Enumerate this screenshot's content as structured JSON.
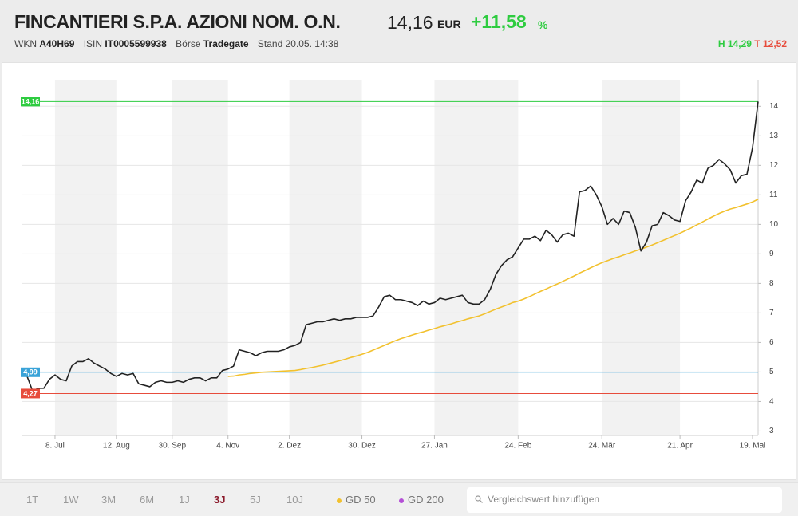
{
  "header": {
    "title": "FINCANTIERI S.P.A. AZIONI NOM. O.N.",
    "price": "14,16",
    "currency": "EUR",
    "change": "+11,58",
    "change_unit": "%",
    "meta": [
      {
        "label": "WKN",
        "value": "A40H69"
      },
      {
        "label": "ISIN",
        "value": "IT0005599938"
      },
      {
        "label": "Börse",
        "value": "Tradegate"
      }
    ],
    "stand": "Stand 20.05. 14:38",
    "high_label": "H",
    "high": "14,29",
    "low_label": "T",
    "low": "12,52"
  },
  "toolbar": {
    "ranges": [
      "1T",
      "1W",
      "3M",
      "6M",
      "1J",
      "3J",
      "5J",
      "10J"
    ],
    "active_range": 5,
    "extra_indicator": {
      "name": "GD 200",
      "color": "#b44fd6"
    },
    "search_placeholder": "Vergleichswert hinzufügen"
  },
  "chart_data": {
    "type": "line",
    "x": [
      0,
      1,
      2,
      3,
      4,
      5,
      6,
      7,
      8,
      9,
      10,
      11,
      12,
      13,
      14,
      15,
      16,
      17,
      18,
      19,
      20,
      21,
      22,
      23,
      24,
      25,
      26,
      27,
      28,
      29,
      30,
      31,
      32,
      33,
      34,
      35,
      36,
      37,
      38,
      39,
      40,
      41,
      42,
      43,
      44,
      45,
      46,
      47,
      48,
      49,
      50,
      51,
      52,
      53,
      54,
      55,
      56,
      57,
      58,
      59,
      60,
      61,
      62,
      63,
      64,
      65,
      66,
      67,
      68,
      69,
      70,
      71,
      72,
      73,
      74,
      75,
      76,
      77,
      78,
      79,
      80,
      81,
      82,
      83,
      84,
      85,
      86,
      87,
      88,
      89,
      90,
      91,
      92,
      93,
      94,
      95,
      96,
      97,
      98,
      99,
      100,
      101,
      102,
      103,
      104,
      105,
      106,
      107,
      108,
      109,
      110,
      111,
      112,
      113,
      114,
      115,
      116,
      117,
      118,
      119,
      120,
      121,
      122,
      123,
      124,
      125,
      126,
      127,
      128,
      129,
      130,
      131,
      132
    ],
    "series": [
      {
        "color": "#222222",
        "values": [
          4.99,
          4.85,
          4.35,
          4.45,
          4.45,
          4.75,
          4.9,
          4.75,
          4.7,
          5.2,
          5.35,
          5.35,
          5.45,
          5.3,
          5.2,
          5.1,
          4.95,
          4.85,
          4.95,
          4.9,
          4.95,
          4.6,
          4.55,
          4.5,
          4.65,
          4.7,
          4.65,
          4.65,
          4.7,
          4.65,
          4.75,
          4.8,
          4.8,
          4.7,
          4.8,
          4.8,
          5.05,
          5.1,
          5.2,
          5.75,
          5.7,
          5.65,
          5.55,
          5.65,
          5.7,
          5.7,
          5.7,
          5.75,
          5.85,
          5.9,
          6.0,
          6.6,
          6.65,
          6.7,
          6.7,
          6.75,
          6.8,
          6.75,
          6.8,
          6.8,
          6.85,
          6.85,
          6.85,
          6.9,
          7.2,
          7.55,
          7.6,
          7.45,
          7.45,
          7.4,
          7.35,
          7.25,
          7.4,
          7.3,
          7.35,
          7.5,
          7.45,
          7.5,
          7.55,
          7.6,
          7.35,
          7.3,
          7.3,
          7.45,
          7.8,
          8.3,
          8.6,
          8.8,
          8.9,
          9.2,
          9.5,
          9.5,
          9.6,
          9.45,
          9.8,
          9.65,
          9.4,
          9.65,
          9.7,
          9.6,
          11.1,
          11.15,
          11.3,
          11.0,
          10.6,
          10.0,
          10.2,
          10.0,
          10.45,
          10.4,
          9.9,
          9.1,
          9.4,
          9.95,
          10.0,
          10.4,
          10.3,
          10.15,
          10.1,
          10.8,
          11.1,
          11.5,
          11.4,
          11.9,
          12.0,
          12.2,
          12.05,
          11.85,
          11.4,
          11.65,
          11.7,
          12.6,
          14.16
        ]
      },
      {
        "name": "GD 50",
        "color": "#f2c12e",
        "values": [
          null,
          null,
          null,
          null,
          null,
          null,
          null,
          null,
          null,
          null,
          null,
          null,
          null,
          null,
          null,
          null,
          null,
          null,
          null,
          null,
          null,
          null,
          null,
          null,
          null,
          null,
          null,
          null,
          null,
          null,
          null,
          null,
          null,
          null,
          null,
          null,
          null,
          4.85,
          4.86,
          4.9,
          4.92,
          4.95,
          4.97,
          4.99,
          5.0,
          5.01,
          5.02,
          5.03,
          5.04,
          5.05,
          5.08,
          5.12,
          5.15,
          5.19,
          5.23,
          5.28,
          5.33,
          5.38,
          5.43,
          5.49,
          5.54,
          5.6,
          5.66,
          5.74,
          5.82,
          5.9,
          5.98,
          6.06,
          6.13,
          6.19,
          6.25,
          6.31,
          6.36,
          6.42,
          6.47,
          6.53,
          6.58,
          6.63,
          6.69,
          6.74,
          6.8,
          6.85,
          6.9,
          6.97,
          7.05,
          7.13,
          7.2,
          7.27,
          7.35,
          7.4,
          7.47,
          7.55,
          7.64,
          7.73,
          7.81,
          7.9,
          7.98,
          8.07,
          8.16,
          8.25,
          8.35,
          8.44,
          8.53,
          8.62,
          8.7,
          8.77,
          8.84,
          8.9,
          8.97,
          9.03,
          9.1,
          9.16,
          9.23,
          9.3,
          9.38,
          9.46,
          9.54,
          9.62,
          9.7,
          9.79,
          9.88,
          9.98,
          10.08,
          10.18,
          10.28,
          10.37,
          10.45,
          10.52,
          10.57,
          10.63,
          10.69,
          10.76,
          10.85
        ]
      }
    ],
    "xlim": [
      0,
      132
    ],
    "xticks": [
      {
        "value": 6,
        "label": "8. Jul"
      },
      {
        "value": 17,
        "label": "12. Aug"
      },
      {
        "value": 27,
        "label": "30. Sep"
      },
      {
        "value": 37,
        "label": "4. Nov"
      },
      {
        "value": 48,
        "label": "2. Dez"
      },
      {
        "value": 61,
        "label": "30. Dez"
      },
      {
        "value": 74,
        "label": "27. Jan"
      },
      {
        "value": 89,
        "label": "24. Feb"
      },
      {
        "value": 104,
        "label": "24. Mär"
      },
      {
        "value": 118,
        "label": "21. Apr"
      },
      {
        "value": 131,
        "label": "19. Mai"
      }
    ],
    "ylim": [
      2.85,
      14.9
    ],
    "yticks": [
      3,
      4,
      5,
      6,
      7,
      8,
      9,
      10,
      11,
      12,
      13,
      14
    ],
    "grid": true,
    "reference_lines": [
      {
        "value": 14.16,
        "label": "14,16",
        "color": "#2ecc40"
      },
      {
        "value": 4.99,
        "label": "4,99",
        "color": "#3aa3d8"
      },
      {
        "value": 4.27,
        "label": "4,27",
        "color": "#e74c3c"
      }
    ]
  }
}
